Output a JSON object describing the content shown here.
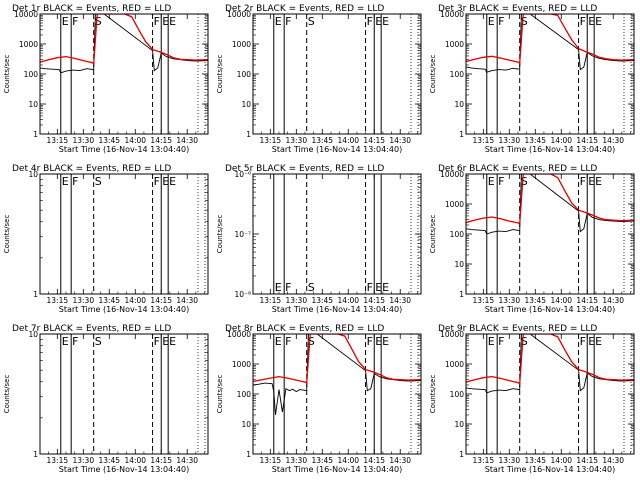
{
  "figure": {
    "xlabel": "Start Time (16-Nov-14 13:04:40)",
    "ylabel": "Counts/sec",
    "x_ticks": [
      "13:15",
      "13:30",
      "13:45",
      "14:00",
      "14:15",
      "14:30"
    ],
    "x_tick_minutes": [
      795,
      810,
      825,
      840,
      855,
      870
    ],
    "xlim_minutes": [
      785,
      882
    ],
    "line_colors": {
      "events": "#000000",
      "lld": "#e00000"
    }
  },
  "chart_data": [
    {
      "type": "line",
      "title": "Det 1r BLACK = Events, RED = LLD",
      "yscale": "log",
      "ylim": [
        1,
        10000
      ],
      "y_ticks": [
        "1",
        "10",
        "100",
        "1000",
        "10000"
      ],
      "y_tick_values": [
        1,
        10,
        100,
        1000,
        10000
      ],
      "markers": [
        {
          "x": 797,
          "style": "solid",
          "label": "E"
        },
        {
          "x": 803,
          "style": "solid",
          "label": "F"
        },
        {
          "x": 816,
          "style": "dashed",
          "label": "S"
        },
        {
          "x": 850,
          "style": "dashed",
          "label": "F"
        },
        {
          "x": 855,
          "style": "solid",
          "label": "E"
        },
        {
          "x": 859,
          "style": "solid",
          "label": "E"
        }
      ],
      "series": [
        {
          "role": "events",
          "x": [
            785,
            788,
            792,
            796,
            797,
            800,
            804,
            808,
            812,
            816,
            817,
            818,
            820,
            822,
            850,
            851,
            853,
            855,
            858,
            862,
            866,
            870,
            875,
            882
          ],
          "y": [
            160,
            150,
            145,
            140,
            110,
            125,
            135,
            130,
            150,
            140,
            10000,
            10000,
            10000,
            10000,
            600,
            130,
            160,
            500,
            380,
            320,
            300,
            280,
            270,
            280
          ]
        },
        {
          "role": "lld",
          "x": [
            785,
            790,
            795,
            800,
            805,
            810,
            815,
            816,
            818,
            820,
            822,
            826,
            830,
            834,
            838,
            842,
            846,
            850,
            854,
            858,
            862,
            866,
            870,
            875,
            882
          ],
          "y": [
            250,
            300,
            350,
            380,
            330,
            280,
            240,
            220,
            10000,
            10000,
            10000,
            10000,
            10000,
            10000,
            8000,
            3000,
            1200,
            650,
            550,
            450,
            350,
            310,
            300,
            290,
            300
          ]
        }
      ]
    },
    {
      "type": "line",
      "title": "Det 2r BLACK = Events, RED = LLD",
      "yscale": "log",
      "ylim": [
        1,
        10000
      ],
      "y_ticks": [
        "1",
        "10",
        "100",
        "1000",
        "10000"
      ],
      "y_tick_values": [
        1,
        10,
        100,
        1000,
        10000
      ],
      "markers": [
        {
          "x": 797,
          "style": "solid",
          "label": "E"
        },
        {
          "x": 803,
          "style": "solid",
          "label": "F"
        },
        {
          "x": 816,
          "style": "dashed",
          "label": "S"
        },
        {
          "x": 850,
          "style": "dashed",
          "label": "F"
        },
        {
          "x": 855,
          "style": "solid",
          "label": "E"
        },
        {
          "x": 859,
          "style": "solid",
          "label": "E"
        }
      ],
      "series": []
    },
    {
      "type": "line",
      "title": "Det 3r BLACK = Events, RED = LLD",
      "yscale": "log",
      "ylim": [
        1,
        10000
      ],
      "y_ticks": [
        "1",
        "10",
        "100",
        "1000",
        "10000"
      ],
      "y_tick_values": [
        1,
        10,
        100,
        1000,
        10000
      ],
      "markers": [
        {
          "x": 797,
          "style": "solid",
          "label": "E"
        },
        {
          "x": 803,
          "style": "solid",
          "label": "F"
        },
        {
          "x": 816,
          "style": "dashed",
          "label": "S"
        },
        {
          "x": 850,
          "style": "dashed",
          "label": "F"
        },
        {
          "x": 855,
          "style": "solid",
          "label": "E"
        },
        {
          "x": 859,
          "style": "solid",
          "label": "E"
        }
      ],
      "series": [
        {
          "role": "events",
          "x": [
            785,
            788,
            792,
            796,
            797,
            800,
            804,
            808,
            812,
            816,
            817,
            818,
            820,
            822,
            850,
            851,
            853,
            855,
            858,
            862,
            866,
            870,
            875,
            882
          ],
          "y": [
            170,
            160,
            150,
            145,
            115,
            130,
            140,
            135,
            155,
            145,
            10000,
            10000,
            10000,
            10000,
            650,
            140,
            170,
            520,
            400,
            330,
            300,
            280,
            270,
            280
          ]
        },
        {
          "role": "lld",
          "x": [
            785,
            790,
            795,
            800,
            805,
            810,
            815,
            816,
            818,
            820,
            822,
            826,
            830,
            834,
            838,
            842,
            846,
            850,
            854,
            858,
            862,
            866,
            870,
            875,
            882
          ],
          "y": [
            260,
            310,
            360,
            390,
            340,
            290,
            250,
            230,
            10000,
            10000,
            10000,
            10000,
            10000,
            10000,
            9000,
            3500,
            1400,
            700,
            560,
            460,
            360,
            320,
            300,
            290,
            300
          ]
        }
      ]
    },
    {
      "type": "line",
      "title": "Det 4r BLACK = Events, RED = LLD",
      "yscale": "log",
      "ylim": [
        1,
        10
      ],
      "y_ticks": [
        "1",
        "10"
      ],
      "y_tick_values": [
        1,
        10
      ],
      "markers": [
        {
          "x": 797,
          "style": "solid",
          "label": "E"
        },
        {
          "x": 803,
          "style": "solid",
          "label": "F"
        },
        {
          "x": 816,
          "style": "dashed",
          "label": "S"
        },
        {
          "x": 850,
          "style": "dashed",
          "label": "F"
        },
        {
          "x": 855,
          "style": "solid",
          "label": "E"
        },
        {
          "x": 859,
          "style": "solid",
          "label": "E"
        }
      ],
      "series": []
    },
    {
      "type": "line",
      "title": "Det 5r BLACK = Events, RED = LLD",
      "yscale": "log",
      "ylim": [
        1e-08,
        1e-06
      ],
      "y_ticks": [
        "10⁻⁸",
        "10⁻⁷",
        "10⁻⁶"
      ],
      "y_tick_values": [
        1e-08,
        1e-07,
        1e-06
      ],
      "markers": [
        {
          "x": 797,
          "style": "solid",
          "label": "E"
        },
        {
          "x": 803,
          "style": "solid",
          "label": "F"
        },
        {
          "x": 816,
          "style": "dashed",
          "label": "S"
        },
        {
          "x": 850,
          "style": "dashed",
          "label": "F"
        },
        {
          "x": 855,
          "style": "solid",
          "label": "E"
        },
        {
          "x": 859,
          "style": "solid",
          "label": "E"
        }
      ],
      "marker_label_position": "bottom",
      "series": []
    },
    {
      "type": "line",
      "title": "Det 6r BLACK = Events, RED = LLD",
      "yscale": "log",
      "ylim": [
        1,
        10000
      ],
      "y_ticks": [
        "1",
        "10",
        "100",
        "1000",
        "10000"
      ],
      "y_tick_values": [
        1,
        10,
        100,
        1000,
        10000
      ],
      "markers": [
        {
          "x": 797,
          "style": "solid",
          "label": "E"
        },
        {
          "x": 803,
          "style": "solid",
          "label": "F"
        },
        {
          "x": 816,
          "style": "dashed",
          "label": "S"
        },
        {
          "x": 850,
          "style": "dashed",
          "label": "F"
        },
        {
          "x": 855,
          "style": "solid",
          "label": "E"
        },
        {
          "x": 859,
          "style": "solid",
          "label": "E"
        }
      ],
      "series": [
        {
          "role": "events",
          "x": [
            785,
            788,
            792,
            796,
            797,
            800,
            804,
            808,
            812,
            816,
            817,
            818,
            820,
            822,
            850,
            851,
            853,
            855,
            858,
            862,
            866,
            870,
            875,
            882
          ],
          "y": [
            150,
            140,
            135,
            130,
            100,
            115,
            125,
            120,
            140,
            130,
            10000,
            10000,
            10000,
            10000,
            580,
            120,
            150,
            480,
            360,
            300,
            280,
            270,
            260,
            270
          ]
        },
        {
          "role": "lld",
          "x": [
            785,
            790,
            795,
            800,
            805,
            810,
            815,
            816,
            818,
            820,
            822,
            826,
            830,
            834,
            838,
            842,
            846,
            850,
            854,
            858,
            862,
            866,
            870,
            875,
            882
          ],
          "y": [
            240,
            290,
            340,
            370,
            320,
            270,
            235,
            215,
            10000,
            10000,
            10000,
            10000,
            10000,
            10000,
            7500,
            2800,
            1100,
            620,
            520,
            430,
            340,
            300,
            290,
            280,
            290
          ]
        }
      ]
    },
    {
      "type": "line",
      "title": "Det 7r BLACK = Events, RED = LLD",
      "yscale": "log",
      "ylim": [
        1,
        10
      ],
      "y_ticks": [
        "1",
        "10"
      ],
      "y_tick_values": [
        1,
        10
      ],
      "markers": [
        {
          "x": 797,
          "style": "solid",
          "label": "E"
        },
        {
          "x": 803,
          "style": "solid",
          "label": "F"
        },
        {
          "x": 816,
          "style": "dashed",
          "label": "S"
        },
        {
          "x": 850,
          "style": "dashed",
          "label": "F"
        },
        {
          "x": 855,
          "style": "solid",
          "label": "E"
        },
        {
          "x": 859,
          "style": "solid",
          "label": "E"
        }
      ],
      "series": []
    },
    {
      "type": "line",
      "title": "Det 8r BLACK = Events, RED = LLD",
      "yscale": "log",
      "ylim": [
        1,
        10000
      ],
      "y_ticks": [
        "1",
        "10",
        "100",
        "1000",
        "10000"
      ],
      "y_tick_values": [
        1,
        10,
        100,
        1000,
        10000
      ],
      "markers": [
        {
          "x": 797,
          "style": "solid",
          "label": "E"
        },
        {
          "x": 803,
          "style": "solid",
          "label": "F"
        },
        {
          "x": 816,
          "style": "dashed",
          "label": "S"
        },
        {
          "x": 850,
          "style": "dashed",
          "label": "F"
        },
        {
          "x": 855,
          "style": "solid",
          "label": "E"
        },
        {
          "x": 859,
          "style": "solid",
          "label": "E"
        }
      ],
      "series": [
        {
          "role": "events",
          "x": [
            785,
            788,
            792,
            796,
            797,
            798,
            800,
            802,
            804,
            806,
            808,
            810,
            812,
            816,
            817,
            818,
            820,
            822,
            850,
            851,
            853,
            855,
            858,
            862,
            866,
            870,
            875,
            882
          ],
          "y": [
            200,
            210,
            230,
            220,
            120,
            20,
            140,
            25,
            150,
            130,
            145,
            120,
            140,
            130,
            10000,
            10000,
            10000,
            10000,
            600,
            130,
            150,
            480,
            380,
            320,
            300,
            280,
            270,
            280
          ]
        },
        {
          "role": "lld",
          "x": [
            785,
            790,
            795,
            800,
            805,
            810,
            815,
            816,
            818,
            820,
            822,
            826,
            830,
            834,
            838,
            842,
            846,
            850,
            854,
            858,
            862,
            866,
            870,
            875,
            882
          ],
          "y": [
            260,
            300,
            340,
            380,
            340,
            290,
            250,
            230,
            10000,
            10000,
            10000,
            10000,
            10000,
            10000,
            8500,
            3200,
            1200,
            650,
            550,
            450,
            350,
            310,
            300,
            290,
            300
          ]
        }
      ]
    },
    {
      "type": "line",
      "title": "Det 9r BLACK = Events, RED = LLD",
      "yscale": "log",
      "ylim": [
        1,
        10000
      ],
      "y_ticks": [
        "1",
        "10",
        "100",
        "1000",
        "10000"
      ],
      "y_tick_values": [
        1,
        10,
        100,
        1000,
        10000
      ],
      "markers": [
        {
          "x": 797,
          "style": "solid",
          "label": "E"
        },
        {
          "x": 803,
          "style": "solid",
          "label": "F"
        },
        {
          "x": 816,
          "style": "dashed",
          "label": "S"
        },
        {
          "x": 850,
          "style": "dashed",
          "label": "F"
        },
        {
          "x": 855,
          "style": "solid",
          "label": "E"
        },
        {
          "x": 859,
          "style": "solid",
          "label": "E"
        }
      ],
      "series": [
        {
          "role": "events",
          "x": [
            785,
            788,
            792,
            796,
            797,
            800,
            804,
            808,
            812,
            816,
            817,
            818,
            820,
            822,
            850,
            851,
            853,
            855,
            858,
            862,
            866,
            870,
            875,
            882
          ],
          "y": [
            160,
            150,
            145,
            140,
            110,
            125,
            135,
            130,
            150,
            140,
            10000,
            10000,
            10000,
            10000,
            620,
            130,
            160,
            500,
            380,
            320,
            300,
            280,
            270,
            280
          ]
        },
        {
          "role": "lld",
          "x": [
            785,
            790,
            795,
            800,
            805,
            810,
            815,
            816,
            818,
            820,
            822,
            826,
            830,
            834,
            838,
            842,
            846,
            850,
            854,
            858,
            862,
            866,
            870,
            875,
            882
          ],
          "y": [
            250,
            300,
            350,
            380,
            330,
            280,
            240,
            220,
            10000,
            10000,
            10000,
            10000,
            10000,
            10000,
            8000,
            3000,
            1200,
            650,
            550,
            450,
            350,
            310,
            300,
            290,
            300
          ]
        }
      ]
    }
  ]
}
